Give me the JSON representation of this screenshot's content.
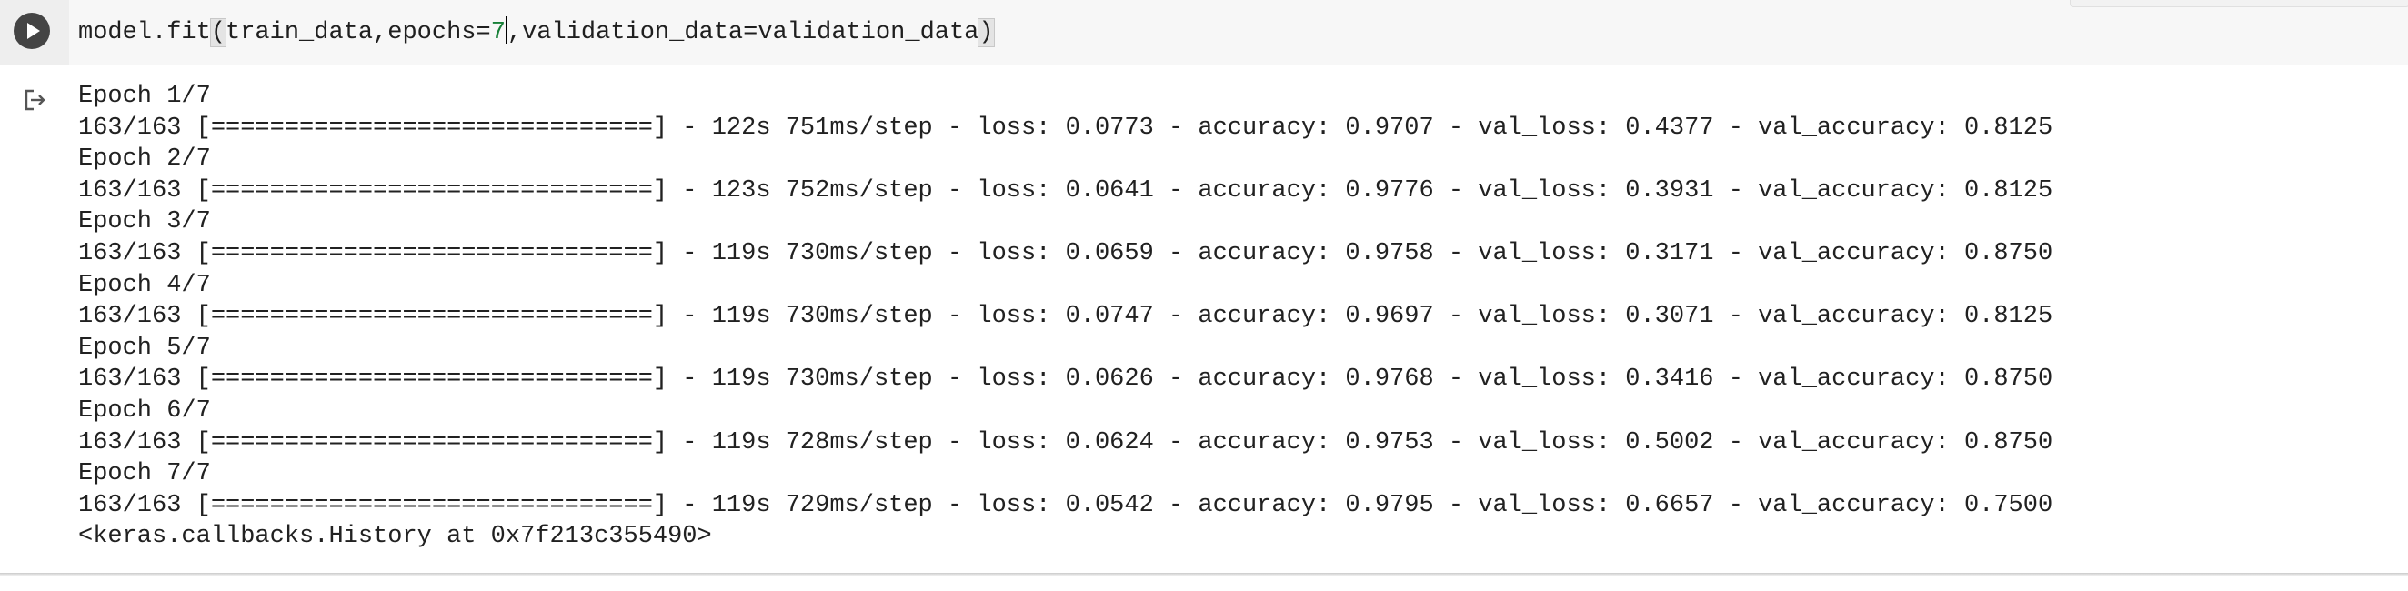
{
  "code": {
    "prefix": "model.fit",
    "open_paren": "(",
    "args_before": "train_data,epochs=",
    "epochs_value": "7",
    "args_after": ",validation_data=validation_data",
    "close_paren": ")"
  },
  "run_button": {
    "icon": "play-icon"
  },
  "output_toggle": {
    "icon": "output-arrow-icon"
  },
  "output": {
    "lines": [
      "Epoch 1/7",
      "163/163 [==============================] - 122s 751ms/step - loss: 0.0773 - accuracy: 0.9707 - val_loss: 0.4377 - val_accuracy: 0.8125",
      "Epoch 2/7",
      "163/163 [==============================] - 123s 752ms/step - loss: 0.0641 - accuracy: 0.9776 - val_loss: 0.3931 - val_accuracy: 0.8125",
      "Epoch 3/7",
      "163/163 [==============================] - 119s 730ms/step - loss: 0.0659 - accuracy: 0.9758 - val_loss: 0.3171 - val_accuracy: 0.8750",
      "Epoch 4/7",
      "163/163 [==============================] - 119s 730ms/step - loss: 0.0747 - accuracy: 0.9697 - val_loss: 0.3071 - val_accuracy: 0.8125",
      "Epoch 5/7",
      "163/163 [==============================] - 119s 730ms/step - loss: 0.0626 - accuracy: 0.9768 - val_loss: 0.3416 - val_accuracy: 0.8750",
      "Epoch 6/7",
      "163/163 [==============================] - 119s 728ms/step - loss: 0.0624 - accuracy: 0.9753 - val_loss: 0.5002 - val_accuracy: 0.8750",
      "Epoch 7/7",
      "163/163 [==============================] - 119s 729ms/step - loss: 0.0542 - accuracy: 0.9795 - val_loss: 0.6657 - val_accuracy: 0.7500",
      "<keras.callbacks.History at 0x7f213c355490>"
    ]
  }
}
